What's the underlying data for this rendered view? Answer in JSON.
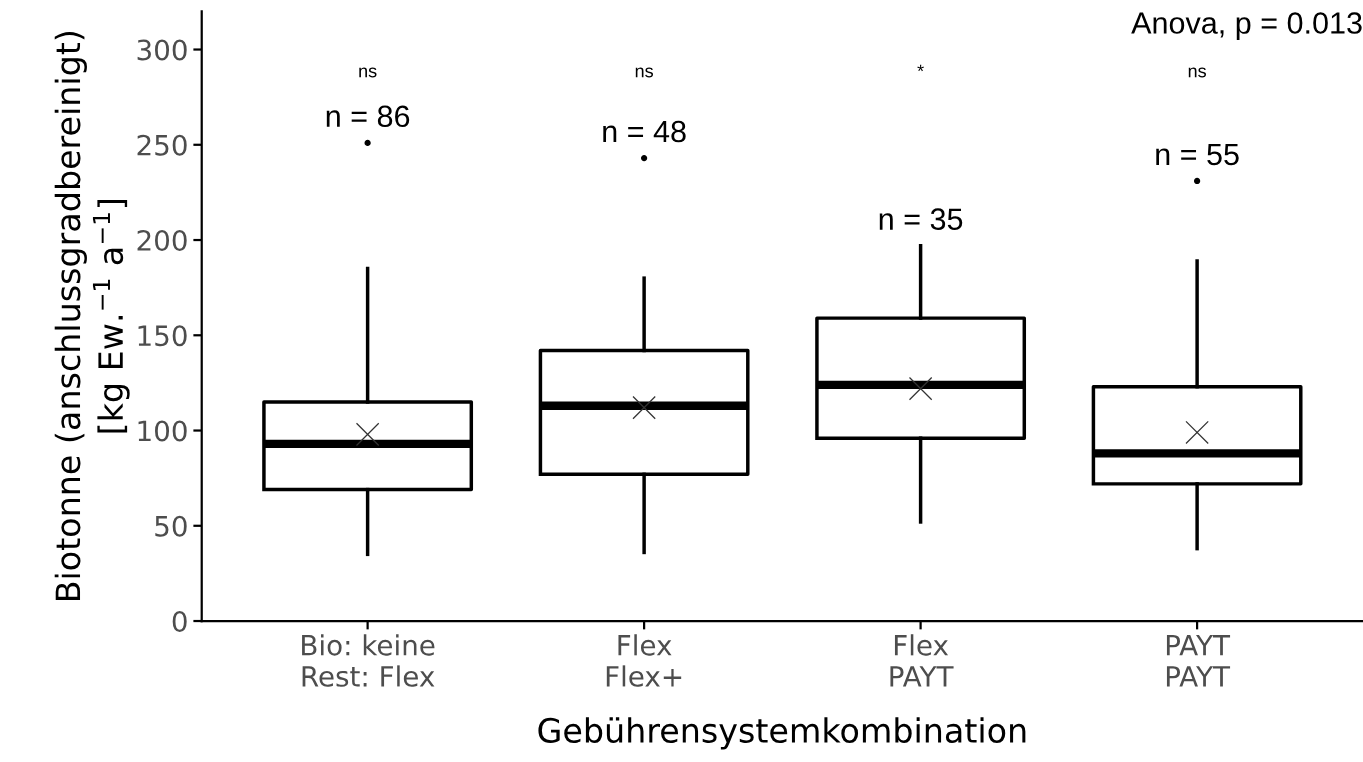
{
  "chart_data": {
    "type": "box",
    "xlabel": "Gebührensystemkombination",
    "ylabel": "Biotonne (anschlussgradbereinigt)\n[kg Ew.$^{−1}$ a$^{−1}$]",
    "categories": [
      "Bio: keine\nRest: Flex",
      "Flex\nFlex+",
      "Flex\nPAYT",
      "PAYT\nPAYT"
    ],
    "boxes": [
      {
        "low": 35,
        "q1": 69,
        "median": 93,
        "q3": 115,
        "high": 185,
        "mean": 98,
        "outliers": [
          251
        ]
      },
      {
        "low": 36,
        "q1": 77,
        "median": 113,
        "q3": 142,
        "high": 180,
        "mean": 112,
        "outliers": [
          243
        ]
      },
      {
        "low": 52,
        "q1": 96,
        "median": 124,
        "q3": 159,
        "high": 197,
        "mean": 122
      },
      {
        "low": 38,
        "q1": 72,
        "median": 88,
        "q3": 123,
        "high": 189,
        "mean": 99,
        "outliers": [
          231
        ]
      }
    ],
    "ylim": [
      0,
      320
    ],
    "yticks": [
      0,
      50,
      100,
      150,
      200,
      250,
      300
    ],
    "grid": false,
    "annotations": [
      "n = 86",
      "n = 48",
      "n = 35",
      "n = 55",
      "ns",
      "ns",
      "*",
      "ns",
      "Anova, p = 0.013"
    ]
  }
}
